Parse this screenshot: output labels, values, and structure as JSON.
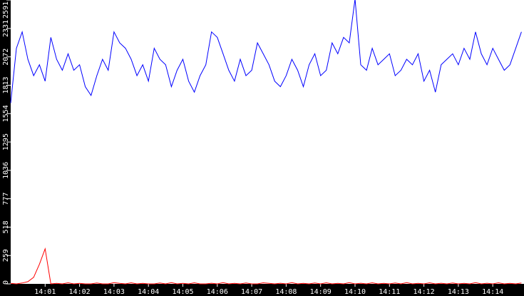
{
  "chart_data": {
    "type": "line",
    "x_start": "14:00:00",
    "x_step_seconds": 10,
    "x_ticks": [
      "14:01",
      "14:02",
      "14:03",
      "14:04",
      "14:05",
      "14:06",
      "14:07",
      "14:08",
      "14:09",
      "14:10",
      "14:11",
      "14:12",
      "14:13",
      "14:14"
    ],
    "y_ticks": [
      "0",
      "259",
      "518",
      "777",
      "1036",
      "1295",
      "1554",
      "1813",
      "2072",
      "2331",
      "2591"
    ],
    "ylim": [
      0,
      2591
    ],
    "grid": false,
    "series": [
      {
        "color": "#0000ff",
        "values": [
          1650,
          2150,
          2300,
          2050,
          1900,
          2000,
          1850,
          2250,
          2050,
          1950,
          2100,
          1950,
          2000,
          1800,
          1720,
          1900,
          2050,
          1950,
          2300,
          2200,
          2150,
          2050,
          1900,
          2000,
          1850,
          2150,
          2050,
          2000,
          1800,
          1950,
          2050,
          1850,
          1750,
          1900,
          2000,
          2300,
          2250,
          2100,
          1950,
          1850,
          2050,
          1900,
          1950,
          2200,
          2100,
          2000,
          1850,
          1800,
          1900,
          2050,
          1950,
          1800,
          2000,
          2100,
          1900,
          1950,
          2200,
          2100,
          2250,
          2200,
          2600,
          2000,
          1950,
          2150,
          2000,
          2050,
          2100,
          1900,
          1950,
          2050,
          2000,
          2100,
          1850,
          1950,
          1750,
          2000,
          2050,
          2100,
          2000,
          2150,
          2050,
          2300,
          2100,
          2000,
          2150,
          2050,
          1950,
          2000,
          2150,
          2300
        ]
      },
      {
        "color": "#ff0000",
        "values": [
          5,
          0,
          8,
          20,
          60,
          180,
          320,
          0,
          5,
          0,
          10,
          0,
          5,
          0,
          0,
          8,
          0,
          0,
          12,
          5,
          0,
          10,
          0,
          5,
          0,
          0,
          8,
          0,
          12,
          0,
          5,
          0,
          10,
          0,
          0,
          6,
          0,
          12,
          0,
          5,
          0,
          8,
          0,
          0,
          10,
          5,
          0,
          6,
          0,
          12,
          0,
          5,
          0,
          8,
          0,
          10,
          0,
          5,
          0,
          12,
          0,
          6,
          0,
          10,
          0,
          5,
          0,
          8,
          0,
          12,
          0,
          5,
          0,
          10,
          0,
          6,
          0,
          8,
          0,
          5,
          0,
          12,
          0,
          6,
          0,
          10,
          0,
          5,
          0,
          8
        ]
      }
    ]
  }
}
